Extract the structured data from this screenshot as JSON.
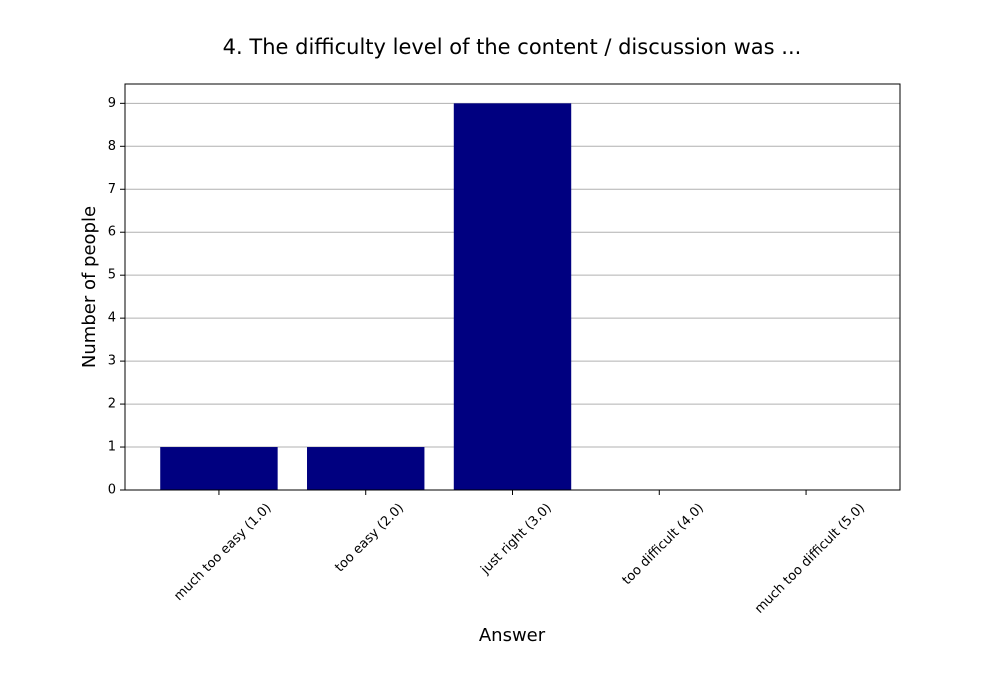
{
  "chart_data": {
    "type": "bar",
    "title": "4. The difficulty level of the content / discussion was ...",
    "x_label": "Answer",
    "y_label": "Number of people",
    "categories": [
      "much too easy (1.0)",
      "too easy (2.0)",
      "just right (3.0)",
      "too difficult (4.0)",
      "much too difficult (5.0)"
    ],
    "values": [
      1,
      1,
      9,
      0,
      0
    ],
    "color": "#000080",
    "ylim": [
      0,
      9.45
    ],
    "yticks": [
      0,
      1,
      2,
      3,
      4,
      5,
      6,
      7,
      8,
      9
    ],
    "grid": true
  }
}
